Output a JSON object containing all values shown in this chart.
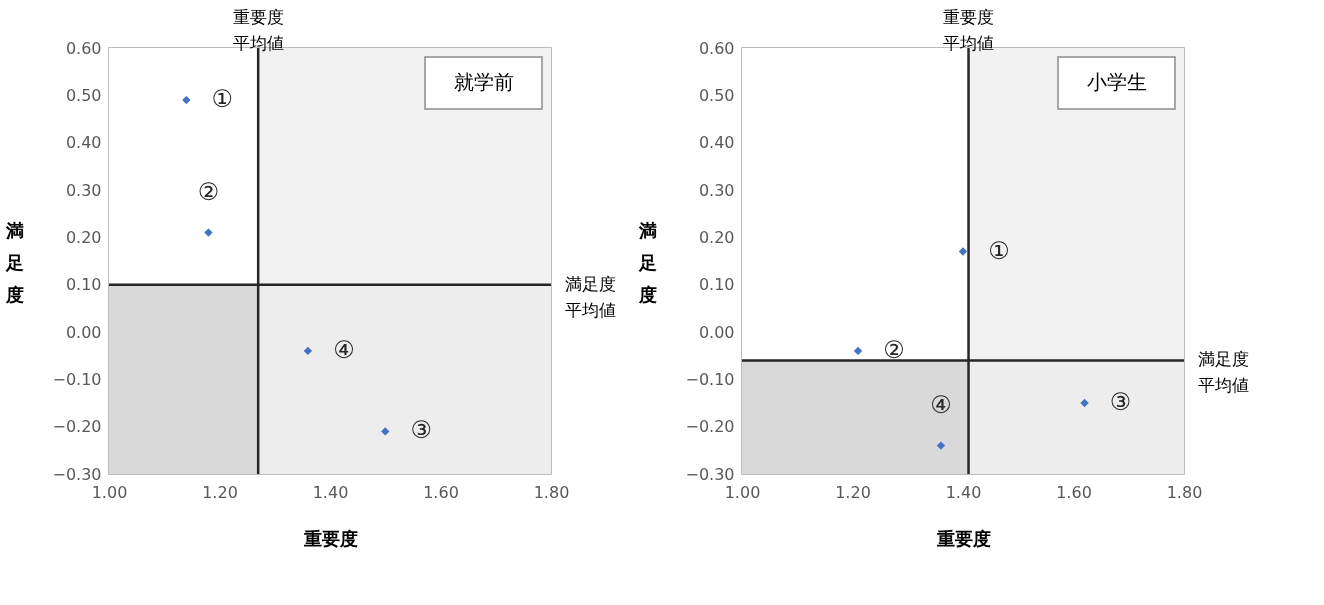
{
  "chart_data": [
    {
      "type": "scatter",
      "title": "就学前",
      "xlabel": "重要度",
      "ylabel": "満足度",
      "marker": "diamond",
      "series": [
        {
          "color": "#4472c4",
          "x": [
            1.14,
            1.18,
            1.5,
            1.36
          ],
          "values": [
            0.49,
            0.21,
            -0.21,
            -0.04
          ]
        }
      ],
      "xlim": [
        1.0,
        1.8
      ],
      "ylim": [
        -0.3,
        0.6
      ],
      "xticks": [
        {
          "value": 1.0,
          "label": "1.00"
        },
        {
          "value": 1.2,
          "label": "1.20"
        },
        {
          "value": 1.4,
          "label": "1.40"
        },
        {
          "value": 1.6,
          "label": "1.60"
        },
        {
          "value": 1.8,
          "label": "1.80"
        }
      ],
      "yticks": [
        {
          "value": -0.3,
          "label": "−0.30"
        },
        {
          "value": -0.2,
          "label": "−0.20"
        },
        {
          "value": -0.1,
          "label": "−0.10"
        },
        {
          "value": 0,
          "label": "0.00"
        },
        {
          "value": 0.1,
          "label": "0.10"
        },
        {
          "value": 0.2,
          "label": "0.20"
        },
        {
          "value": 0.3,
          "label": "0.30"
        },
        {
          "value": 0.4,
          "label": "0.40"
        },
        {
          "value": 0.5,
          "label": "0.50"
        },
        {
          "value": 0.6,
          "label": "0.60"
        }
      ],
      "ref_lines": [
        {
          "axis": "x",
          "value": 1.27,
          "label": "重要度平均値",
          "color": "#262626"
        },
        {
          "axis": "y",
          "value": 0.1,
          "label": "満足度平均値",
          "color": "#262626"
        }
      ],
      "bands": [
        {
          "axis": "y",
          "from": -0.3,
          "to": 0.1,
          "color": "#d9d9d9"
        },
        {
          "axis": "x",
          "from": 1.27,
          "to": 1.8,
          "color": "#f0f0f0"
        }
      ],
      "annotations": [
        {
          "text": "①",
          "x": 1.14,
          "y": 0.49
        },
        {
          "text": "②",
          "x": 1.18,
          "y": 0.21
        },
        {
          "text": "③",
          "x": 1.5,
          "y": -0.21
        },
        {
          "text": "④",
          "x": 1.36,
          "y": -0.04
        }
      ]
    },
    {
      "type": "scatter",
      "title": "小学生",
      "xlabel": "重要度",
      "ylabel": "満足度",
      "marker": "diamond",
      "series": [
        {
          "color": "#4472c4",
          "x": [
            1.4,
            1.21,
            1.62,
            1.36
          ],
          "values": [
            0.17,
            -0.04,
            -0.15,
            -0.24
          ]
        }
      ],
      "xlim": [
        1.0,
        1.8
      ],
      "ylim": [
        -0.3,
        0.6
      ],
      "xticks": [
        {
          "value": 1.0,
          "label": "1.00"
        },
        {
          "value": 1.2,
          "label": "1.20"
        },
        {
          "value": 1.4,
          "label": "1.40"
        },
        {
          "value": 1.6,
          "label": "1.60"
        },
        {
          "value": 1.8,
          "label": "1.80"
        }
      ],
      "yticks": [
        {
          "value": -0.3,
          "label": "−0.30"
        },
        {
          "value": -0.2,
          "label": "−0.20"
        },
        {
          "value": -0.1,
          "label": "−0.10"
        },
        {
          "value": 0,
          "label": "0.00"
        },
        {
          "value": 0.1,
          "label": "0.10"
        },
        {
          "value": 0.2,
          "label": "0.20"
        },
        {
          "value": 0.3,
          "label": "0.30"
        },
        {
          "value": 0.4,
          "label": "0.40"
        },
        {
          "value": 0.5,
          "label": "0.50"
        },
        {
          "value": 0.6,
          "label": "0.60"
        }
      ],
      "ref_lines": [
        {
          "axis": "x",
          "value": 1.41,
          "label": "重要度平均値",
          "color": "#262626"
        },
        {
          "axis": "y",
          "value": -0.06,
          "label": "満足度平均値",
          "color": "#262626"
        }
      ],
      "bands": [
        {
          "axis": "y",
          "from": -0.3,
          "to": -0.06,
          "color": "#d9d9d9"
        },
        {
          "axis": "x",
          "from": 1.41,
          "to": 1.8,
          "color": "#f0f0f0"
        }
      ],
      "annotations": [
        {
          "text": "①",
          "x": 1.4,
          "y": 0.17
        },
        {
          "text": "②",
          "x": 1.21,
          "y": -0.04
        },
        {
          "text": "③",
          "x": 1.62,
          "y": -0.15
        },
        {
          "text": "④",
          "x": 1.36,
          "y": -0.24
        }
      ]
    }
  ]
}
